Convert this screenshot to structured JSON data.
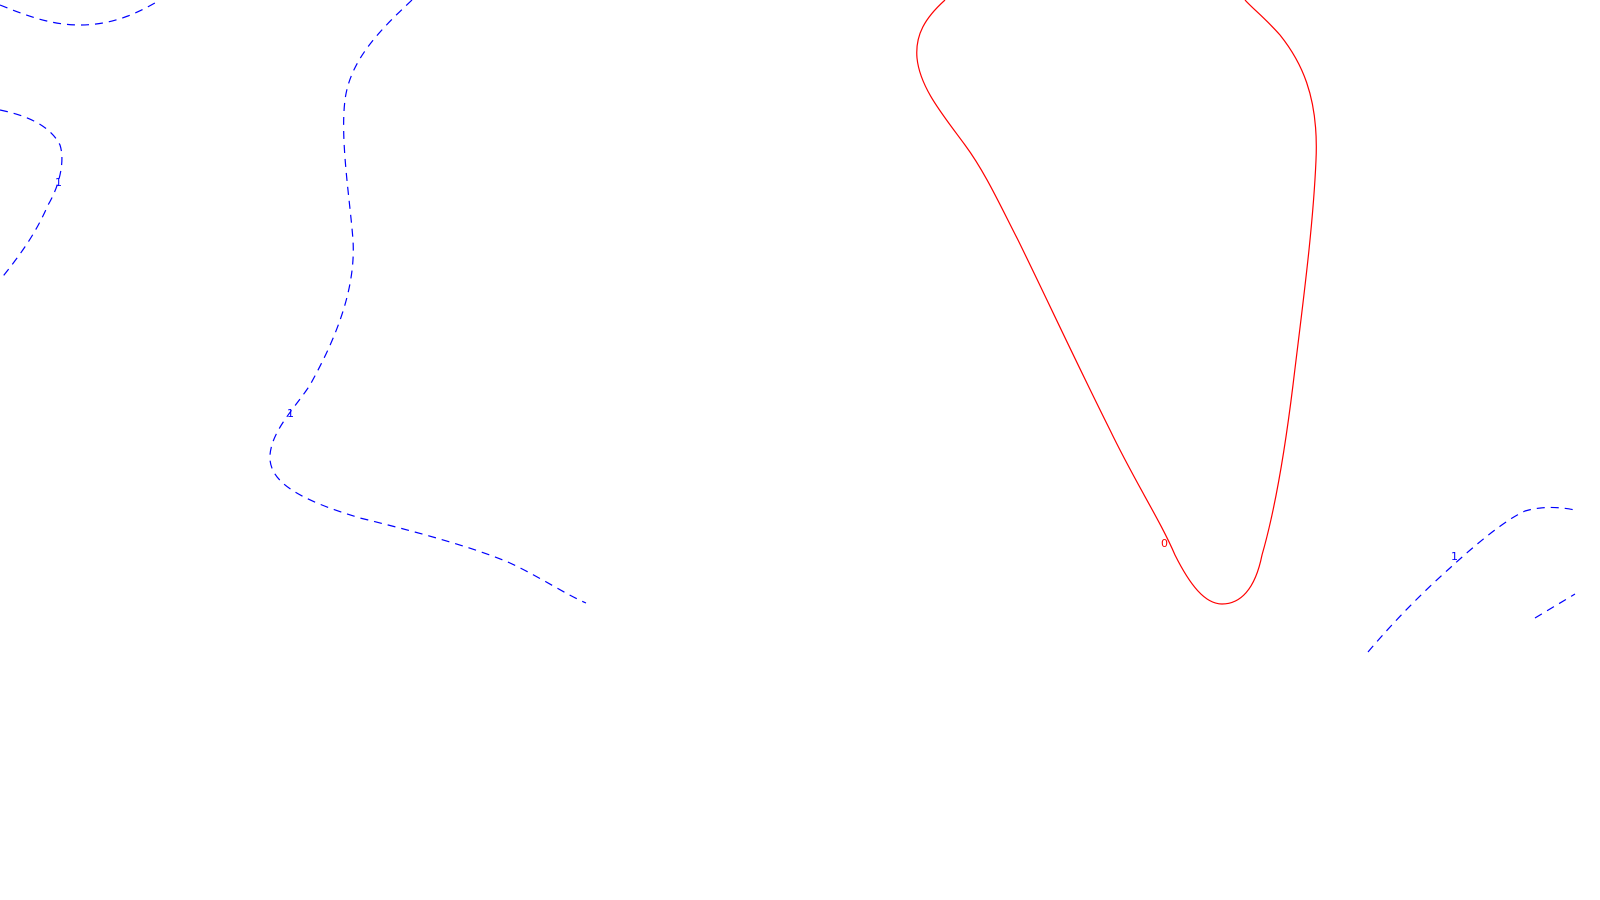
{
  "contours": [
    {
      "id": "top-left-arc",
      "level": "",
      "color": "#0000ff",
      "style": "dashed"
    },
    {
      "id": "left-edge",
      "level": "1",
      "color": "#0000ff",
      "style": "dashed"
    },
    {
      "id": "center-left",
      "level": "1",
      "color": "#0000ff",
      "style": "dashed"
    },
    {
      "id": "teardrop",
      "level": "0",
      "color": "#ff0000",
      "style": "solid"
    },
    {
      "id": "bottom-right",
      "level": "1",
      "color": "#0000ff",
      "style": "dashed"
    },
    {
      "id": "bottom-right-corner",
      "level": "",
      "color": "#0000ff",
      "style": "dashed"
    }
  ]
}
